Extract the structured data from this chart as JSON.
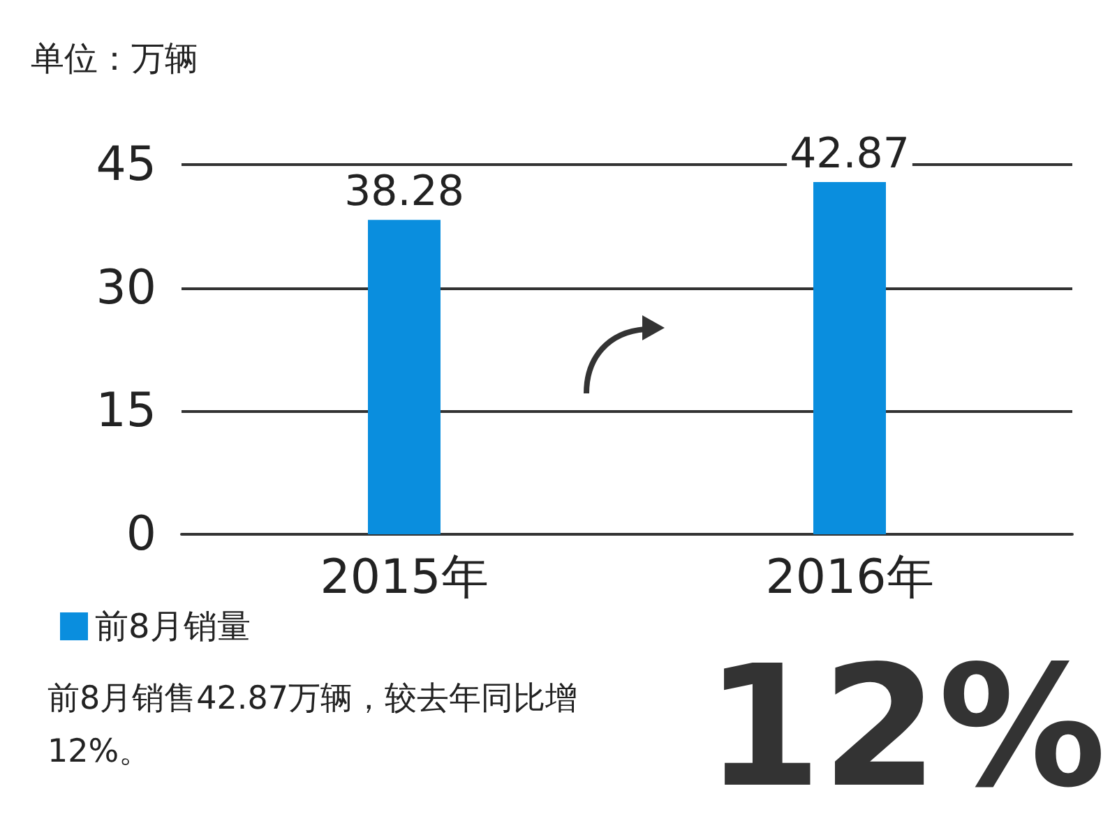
{
  "chart_data": {
    "type": "bar",
    "ylabel": "单位：万辆",
    "categories": [
      "2015年",
      "2016年"
    ],
    "series": [
      {
        "name": "前8月销量",
        "color": "#0a8ede",
        "values": [
          38.28,
          42.87
        ]
      }
    ],
    "ylim": [
      0,
      45
    ],
    "yticks": [
      0,
      15,
      30,
      45
    ],
    "grid": "y",
    "legend": "bottom left",
    "data_labels": true,
    "annotations": [
      "前8月销售42.87万辆，较去年同比增12%。",
      "12%"
    ]
  }
}
